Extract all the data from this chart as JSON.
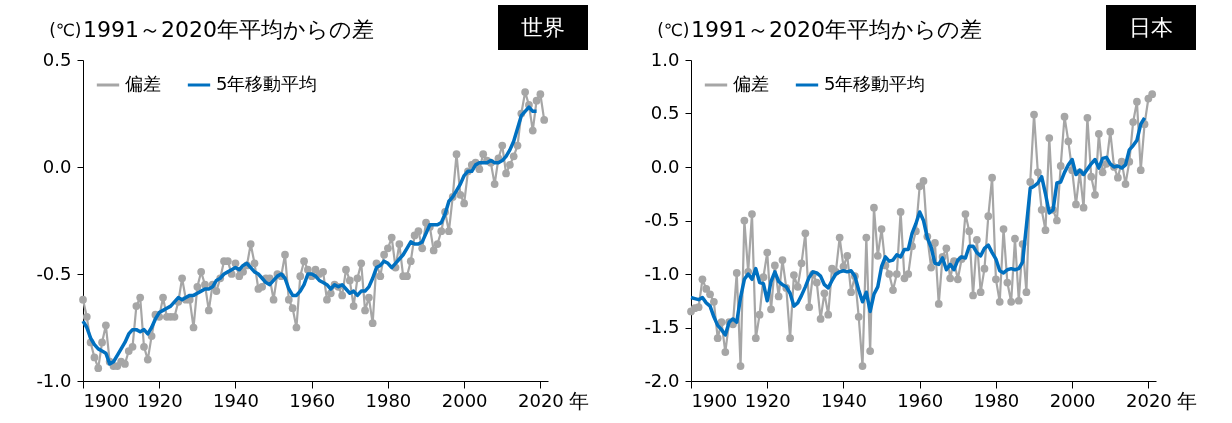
{
  "chart_data": [
    {
      "type": "line",
      "title": "1991～2020年平均からの差",
      "ylabel": "(℃)",
      "xlabel": "年",
      "annotations": [
        "世界"
      ],
      "x": [
        1900,
        1901,
        1902,
        1903,
        1904,
        1905,
        1906,
        1907,
        1908,
        1909,
        1910,
        1911,
        1912,
        1913,
        1914,
        1915,
        1916,
        1917,
        1918,
        1919,
        1920,
        1921,
        1922,
        1923,
        1924,
        1925,
        1926,
        1927,
        1928,
        1929,
        1930,
        1931,
        1932,
        1933,
        1934,
        1935,
        1936,
        1937,
        1938,
        1939,
        1940,
        1941,
        1942,
        1943,
        1944,
        1945,
        1946,
        1947,
        1948,
        1949,
        1950,
        1951,
        1952,
        1953,
        1954,
        1955,
        1956,
        1957,
        1958,
        1959,
        1960,
        1961,
        1962,
        1963,
        1964,
        1965,
        1966,
        1967,
        1968,
        1969,
        1970,
        1971,
        1972,
        1973,
        1974,
        1975,
        1976,
        1977,
        1978,
        1979,
        1980,
        1981,
        1982,
        1983,
        1984,
        1985,
        1986,
        1987,
        1988,
        1989,
        1990,
        1991,
        1992,
        1993,
        1994,
        1995,
        1996,
        1997,
        1998,
        1999,
        2000,
        2001,
        2002,
        2003,
        2004,
        2005,
        2006,
        2007,
        2008,
        2009,
        2010,
        2011,
        2012,
        2013,
        2014,
        2015,
        2016,
        2017,
        2018,
        2019,
        2020,
        2021
      ],
      "series": [
        {
          "name": "偏差",
          "color": "#a6a6a6",
          "marker": "circle",
          "values": [
            -0.62,
            -0.7,
            -0.82,
            -0.89,
            -0.94,
            -0.82,
            -0.74,
            -0.91,
            -0.93,
            -0.93,
            -0.91,
            -0.92,
            -0.86,
            -0.84,
            -0.65,
            -0.61,
            -0.84,
            -0.9,
            -0.79,
            -0.69,
            -0.7,
            -0.61,
            -0.7,
            -0.7,
            -0.7,
            -0.63,
            -0.52,
            -0.62,
            -0.62,
            -0.75,
            -0.56,
            -0.49,
            -0.55,
            -0.67,
            -0.55,
            -0.58,
            -0.52,
            -0.44,
            -0.44,
            -0.5,
            -0.45,
            -0.51,
            -0.49,
            -0.46,
            -0.36,
            -0.45,
            -0.57,
            -0.56,
            -0.52,
            -0.52,
            -0.62,
            -0.5,
            -0.51,
            -0.41,
            -0.62,
            -0.66,
            -0.75,
            -0.51,
            -0.44,
            -0.48,
            -0.51,
            -0.48,
            -0.5,
            -0.49,
            -0.62,
            -0.59,
            -0.55,
            -0.56,
            -0.6,
            -0.48,
            -0.53,
            -0.65,
            -0.52,
            -0.45,
            -0.67,
            -0.61,
            -0.73,
            -0.45,
            -0.51,
            -0.41,
            -0.38,
            -0.33,
            -0.47,
            -0.36,
            -0.51,
            -0.51,
            -0.44,
            -0.32,
            -0.3,
            -0.38,
            -0.26,
            -0.28,
            -0.39,
            -0.36,
            -0.3,
            -0.21,
            -0.3,
            -0.14,
            0.06,
            -0.13,
            -0.17,
            -0.02,
            0.01,
            0.02,
            -0.01,
            0.06,
            0.03,
            0.02,
            -0.08,
            0.04,
            0.1,
            -0.03,
            0.01,
            0.05,
            0.1,
            0.25,
            0.35,
            0.29,
            0.17,
            0.31,
            0.34,
            0.22
          ]
        },
        {
          "name": "5年移動平均",
          "color": "#0070c0",
          "marker": "none",
          "values": [
            -0.72,
            -0.75,
            -0.8,
            -0.83,
            -0.85,
            -0.86,
            -0.87,
            -0.92,
            -0.91,
            -0.88,
            -0.85,
            -0.82,
            -0.78,
            -0.76,
            -0.76,
            -0.77,
            -0.76,
            -0.78,
            -0.75,
            -0.71,
            -0.68,
            -0.67,
            -0.66,
            -0.65,
            -0.63,
            -0.61,
            -0.62,
            -0.61,
            -0.6,
            -0.6,
            -0.59,
            -0.58,
            -0.57,
            -0.57,
            -0.56,
            -0.53,
            -0.52,
            -0.5,
            -0.49,
            -0.48,
            -0.47,
            -0.48,
            -0.46,
            -0.45,
            -0.47,
            -0.49,
            -0.5,
            -0.52,
            -0.54,
            -0.55,
            -0.53,
            -0.51,
            -0.5,
            -0.52,
            -0.57,
            -0.6,
            -0.6,
            -0.58,
            -0.55,
            -0.5,
            -0.5,
            -0.51,
            -0.53,
            -0.54,
            -0.55,
            -0.57,
            -0.55,
            -0.56,
            -0.55,
            -0.57,
            -0.59,
            -0.58,
            -0.6,
            -0.58,
            -0.58,
            -0.56,
            -0.52,
            -0.47,
            -0.46,
            -0.44,
            -0.45,
            -0.47,
            -0.45,
            -0.43,
            -0.41,
            -0.38,
            -0.35,
            -0.36,
            -0.36,
            -0.35,
            -0.31,
            -0.27,
            -0.27,
            -0.27,
            -0.26,
            -0.22,
            -0.16,
            -0.14,
            -0.11,
            -0.08,
            -0.04,
            -0.02,
            -0.02,
            0.01,
            0.02,
            0.02,
            0.02,
            0.03,
            0.02,
            0.02,
            0.03,
            0.05,
            0.08,
            0.12,
            0.18,
            0.24,
            0.26,
            0.28,
            0.26,
            0.26,
            null,
            null
          ]
        }
      ],
      "xlim": [
        1900,
        2022
      ],
      "xticks": [
        1900,
        1920,
        1940,
        1960,
        1980,
        2000,
        2020
      ],
      "ylim": [
        -1.0,
        0.5
      ],
      "yticks": [
        {
          "value": -1.0,
          "label": "-1.0"
        },
        {
          "value": -0.5,
          "label": "-0.5"
        },
        {
          "value": 0,
          "label": "0.0"
        },
        {
          "value": 0.5,
          "label": "0.5"
        }
      ],
      "grid": false,
      "legend": "top left"
    },
    {
      "type": "line",
      "title": "1991～2020年平均からの差",
      "ylabel": "(℃)",
      "xlabel": "年",
      "annotations": [
        "日本"
      ],
      "x": [
        1900,
        1901,
        1902,
        1903,
        1904,
        1905,
        1906,
        1907,
        1908,
        1909,
        1910,
        1911,
        1912,
        1913,
        1914,
        1915,
        1916,
        1917,
        1918,
        1919,
        1920,
        1921,
        1922,
        1923,
        1924,
        1925,
        1926,
        1927,
        1928,
        1929,
        1930,
        1931,
        1932,
        1933,
        1934,
        1935,
        1936,
        1937,
        1938,
        1939,
        1940,
        1941,
        1942,
        1943,
        1944,
        1945,
        1946,
        1947,
        1948,
        1949,
        1950,
        1951,
        1952,
        1953,
        1954,
        1955,
        1956,
        1957,
        1958,
        1959,
        1960,
        1961,
        1962,
        1963,
        1964,
        1965,
        1966,
        1967,
        1968,
        1969,
        1970,
        1971,
        1972,
        1973,
        1974,
        1975,
        1976,
        1977,
        1978,
        1979,
        1980,
        1981,
        1982,
        1983,
        1984,
        1985,
        1986,
        1987,
        1988,
        1989,
        1990,
        1991,
        1992,
        1993,
        1994,
        1995,
        1996,
        1997,
        1998,
        1999,
        2000,
        2001,
        2002,
        2003,
        2004,
        2005,
        2006,
        2007,
        2008,
        2009,
        2010,
        2011,
        2012,
        2013,
        2014,
        2015,
        2016,
        2017,
        2018,
        2019,
        2020,
        2021
      ],
      "series": [
        {
          "name": "偏差",
          "color": "#a6a6a6",
          "marker": "circle",
          "values": [
            -1.35,
            -1.32,
            -1.31,
            -1.05,
            -1.14,
            -1.19,
            -1.26,
            -1.6,
            -1.45,
            -1.73,
            -1.45,
            -1.47,
            -0.99,
            -1.86,
            -0.5,
            -0.98,
            -0.44,
            -1.6,
            -1.38,
            -1.03,
            -0.8,
            -1.33,
            -0.92,
            -1.21,
            -0.87,
            -1.13,
            -1.6,
            -1.01,
            -1.12,
            -0.9,
            -0.62,
            -1.31,
            -1.0,
            -1.08,
            -1.42,
            -1.18,
            -1.38,
            -0.95,
            -0.98,
            -0.66,
            -0.93,
            -0.83,
            -1.17,
            -1.02,
            -1.4,
            -1.86,
            -0.66,
            -1.72,
            -0.38,
            -0.83,
            -0.58,
            -0.92,
            -1.0,
            -1.15,
            -1.0,
            -0.42,
            -1.04,
            -1.0,
            -0.74,
            -0.6,
            -0.18,
            -0.13,
            -0.65,
            -0.94,
            -0.71,
            -1.28,
            -0.84,
            -0.76,
            -1.04,
            -0.88,
            -1.05,
            -0.86,
            -0.44,
            -0.6,
            -1.2,
            -0.68,
            -1.17,
            -0.95,
            -0.46,
            -0.1,
            -1.05,
            -1.26,
            -0.58,
            -1.08,
            -1.26,
            -0.67,
            -1.25,
            -0.72,
            -1.17,
            -0.14,
            0.49,
            -0.05,
            -0.4,
            -0.59,
            0.27,
            -0.4,
            -0.5,
            0.01,
            0.47,
            0.24,
            -0.03,
            -0.35,
            -0.05,
            -0.38,
            0.46,
            -0.09,
            -0.26,
            0.31,
            -0.05,
            0.03,
            0.33,
            0.0,
            -0.1,
            0.05,
            -0.16,
            0.05,
            0.42,
            0.61,
            -0.03,
            0.4,
            0.64,
            0.68
          ]
        },
        {
          "name": "5年移動平均",
          "color": "#0070c0",
          "marker": "none",
          "values": [
            -1.22,
            -1.23,
            -1.24,
            -1.22,
            -1.27,
            -1.3,
            -1.4,
            -1.48,
            -1.52,
            -1.57,
            -1.45,
            -1.42,
            -1.45,
            -1.22,
            -1.05,
            -1.0,
            -1.05,
            -0.95,
            -1.08,
            -1.09,
            -1.25,
            -1.07,
            -0.98,
            -1.07,
            -1.1,
            -1.12,
            -1.18,
            -1.3,
            -1.27,
            -1.2,
            -1.12,
            -1.03,
            -0.98,
            -0.99,
            -1.02,
            -1.1,
            -1.13,
            -1.06,
            -1.0,
            -0.98,
            -0.97,
            -0.98,
            -0.97,
            -1.02,
            -1.15,
            -1.26,
            -1.17,
            -1.35,
            -1.19,
            -1.12,
            -0.93,
            -0.84,
            -0.88,
            -0.87,
            -0.82,
            -0.84,
            -0.77,
            -0.77,
            -0.62,
            -0.53,
            -0.42,
            -0.5,
            -0.66,
            -0.75,
            -0.9,
            -0.91,
            -0.85,
            -0.96,
            -0.91,
            -0.96,
            -0.87,
            -0.84,
            -0.85,
            -0.74,
            -0.74,
            -0.8,
            -0.83,
            -0.76,
            -0.73,
            -0.8,
            -0.86,
            -0.97,
            -0.99,
            -0.96,
            -0.95,
            -0.96,
            -0.95,
            -0.89,
            -0.55,
            -0.2,
            -0.18,
            -0.15,
            -0.09,
            -0.25,
            -0.43,
            -0.4,
            -0.15,
            -0.14,
            -0.05,
            0.02,
            0.07,
            -0.07,
            -0.03,
            -0.07,
            -0.02,
            0.03,
            0.07,
            -0.01,
            0.08,
            0.09,
            0.03,
            0.0,
            0.01,
            -0.01,
            0.02,
            0.16,
            0.2,
            0.25,
            0.4,
            0.46,
            null,
            null
          ]
        }
      ],
      "xlim": [
        1900,
        2022
      ],
      "xticks": [
        1900,
        1920,
        1940,
        1960,
        1980,
        2000,
        2020
      ],
      "ylim": [
        -2.0,
        1.0
      ],
      "yticks": [
        {
          "value": -2.0,
          "label": "-2.0"
        },
        {
          "value": -1.5,
          "label": "-1.5"
        },
        {
          "value": -1.0,
          "label": "-1.0"
        },
        {
          "value": -0.5,
          "label": "-0.5"
        },
        {
          "value": 0,
          "label": "0.0"
        },
        {
          "value": 0.5,
          "label": "0.5"
        },
        {
          "value": 1.0,
          "label": "1.0"
        }
      ],
      "grid": false,
      "legend": "top left"
    }
  ]
}
